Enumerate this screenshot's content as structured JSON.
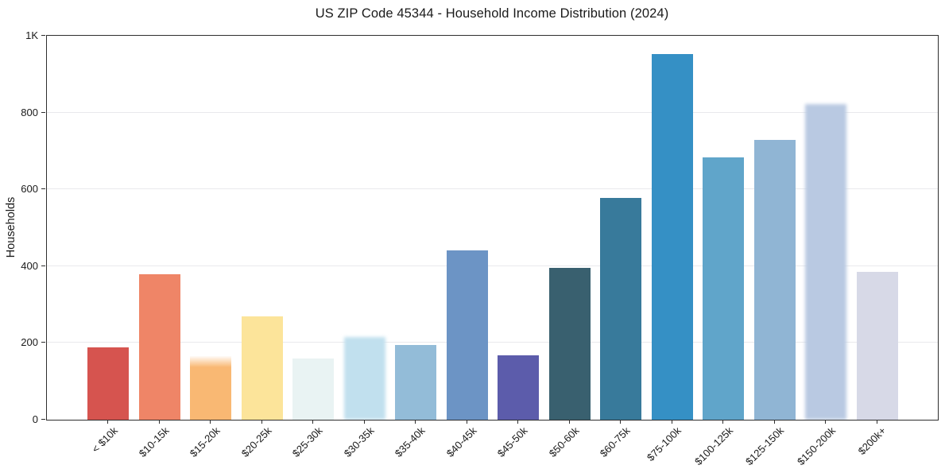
{
  "chart_data": {
    "type": "bar",
    "title": "US ZIP Code 45344 - Household Income Distribution (2024)",
    "xlabel": "",
    "ylabel": "Households",
    "ylim": [
      0,
      1000
    ],
    "grid": "horizontal",
    "legend": "none",
    "yticks": [
      {
        "value": 0,
        "label": "0"
      },
      {
        "value": 200,
        "label": "200"
      },
      {
        "value": 400,
        "label": "400"
      },
      {
        "value": 600,
        "label": "600"
      },
      {
        "value": 800,
        "label": "800"
      },
      {
        "value": 1000,
        "label": "1K"
      }
    ],
    "categories": [
      "< $10k",
      "$10-15k",
      "$15-20k",
      "$20-25k",
      "$25-30k",
      "$30-35k",
      "$35-40k",
      "$40-45k",
      "$45-50k",
      "$50-60k",
      "$60-75k",
      "$75-100k",
      "$100-125k",
      "$125-150k",
      "$150-200k",
      "$200k+"
    ],
    "values": [
      188,
      378,
      165,
      270,
      160,
      215,
      195,
      440,
      168,
      395,
      577,
      952,
      683,
      728,
      822,
      385
    ],
    "bar_colors": [
      "#d6544f",
      "#ef8567",
      "#f9b873",
      "#fce49a",
      "#e9f3f3",
      "#c1e0ee",
      "#93bcd8",
      "#6c94c5",
      "#5c5cab",
      "#39606f",
      "#387a9b",
      "#3590c5",
      "#60a5ca",
      "#90b5d4",
      "#b9c9e2",
      "#d7d9e7"
    ],
    "soft_edge_bar_indices": [
      5,
      14
    ],
    "fade_top_bar_indices": [
      2
    ],
    "axis_color": "#2e2e2e",
    "gridline_color": "#e9e9ec",
    "background_color": "#ffffff"
  }
}
